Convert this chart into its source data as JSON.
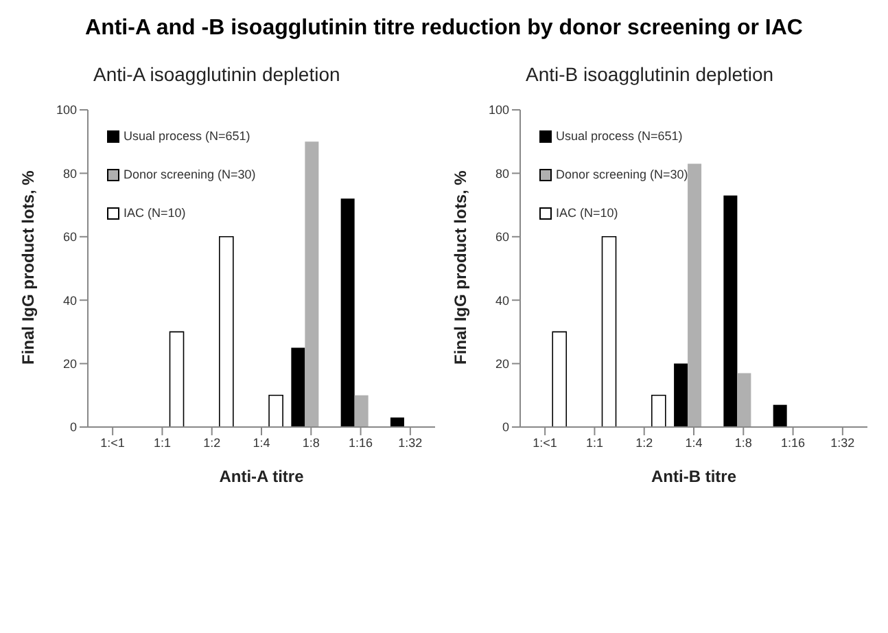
{
  "chart_data": [
    {
      "type": "bar",
      "title": "Anti-A and -B isoagglutinin titre reduction by donor screening or IAC",
      "subtitle": "Anti-A isoagglutinin depletion",
      "xlabel": "Anti-A titre",
      "ylabel": "Final IgG product lots, %",
      "categories": [
        "1:<1",
        "1:1",
        "1:2",
        "1:4",
        "1:8",
        "1:16",
        "1:32"
      ],
      "series": [
        {
          "name": "Usual process (N=651)",
          "color": "#000000",
          "values": [
            0,
            0,
            0,
            0,
            25,
            72,
            3
          ]
        },
        {
          "name": "Donor screening (N=30)",
          "color": "#b0b0b0",
          "values": [
            0,
            0,
            0,
            0,
            90,
            10,
            0
          ]
        },
        {
          "name": "IAC (N=10)",
          "color": "#ffffff",
          "values": [
            0,
            30,
            60,
            10,
            0,
            0,
            0
          ]
        }
      ],
      "ylim": [
        0,
        100
      ],
      "yticks": [
        0,
        20,
        40,
        60,
        80,
        100
      ],
      "grid": false,
      "legend": "top left"
    },
    {
      "type": "bar",
      "subtitle": "Anti-B isoagglutinin depletion",
      "xlabel": "Anti-B titre",
      "ylabel": "Final IgG product lots, %",
      "categories": [
        "1:<1",
        "1:1",
        "1:2",
        "1:4",
        "1:8",
        "1:16",
        "1:32"
      ],
      "series": [
        {
          "name": "Usual process (N=651)",
          "color": "#000000",
          "values": [
            0,
            0,
            0,
            20,
            73,
            7,
            0
          ]
        },
        {
          "name": "Donor screening (N=30)",
          "color": "#b0b0b0",
          "values": [
            0,
            0,
            0,
            83,
            17,
            0,
            0
          ]
        },
        {
          "name": "IAC (N=10)",
          "color": "#ffffff",
          "values": [
            30,
            60,
            10,
            0,
            0,
            0,
            0
          ]
        }
      ],
      "ylim": [
        0,
        100
      ],
      "yticks": [
        0,
        20,
        40,
        60,
        80,
        100
      ],
      "grid": false,
      "legend": "top left"
    }
  ]
}
